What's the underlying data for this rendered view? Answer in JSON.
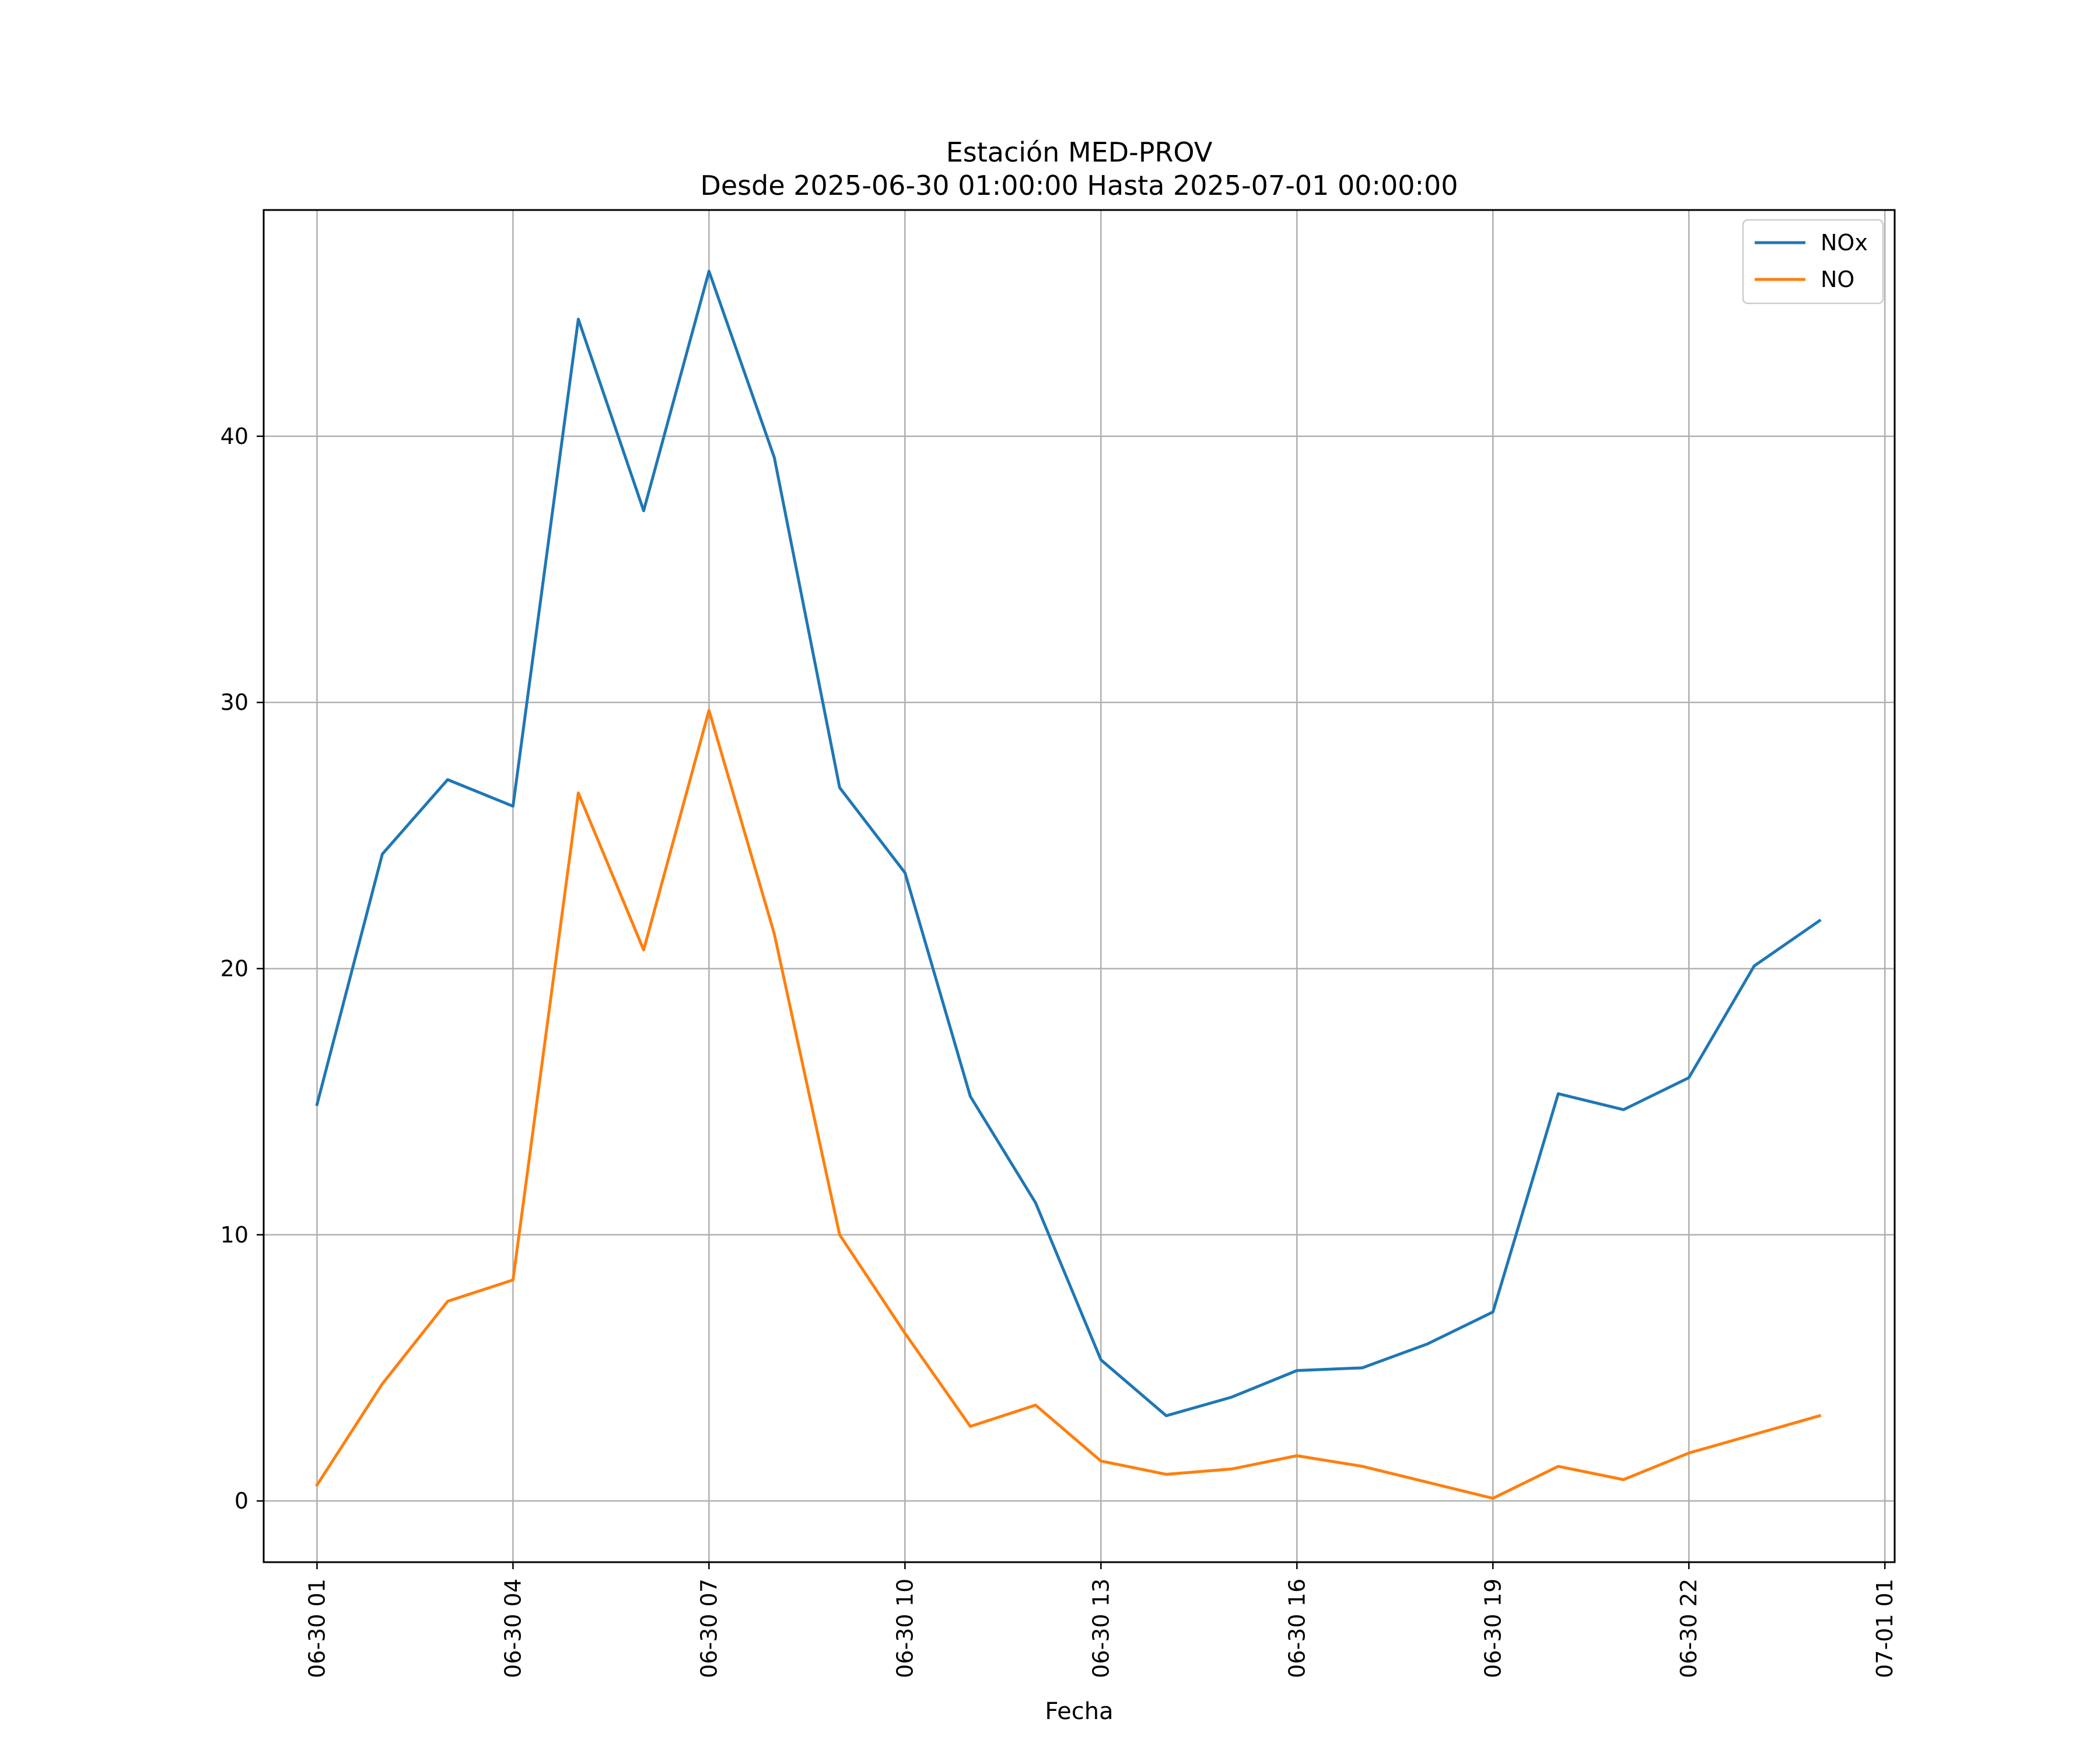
{
  "chart_data": {
    "type": "line",
    "title": "Estación MED-PROV",
    "subtitle": "Desde 2025-06-30 01:00:00 Hasta 2025-07-01 00:00:00",
    "xlabel": "Fecha",
    "ylabel": "",
    "x": [
      "2025-06-30 01:00",
      "2025-06-30 02:00",
      "2025-06-30 03:00",
      "2025-06-30 04:00",
      "2025-06-30 05:00",
      "2025-06-30 06:00",
      "2025-06-30 07:00",
      "2025-06-30 08:00",
      "2025-06-30 09:00",
      "2025-06-30 10:00",
      "2025-06-30 11:00",
      "2025-06-30 12:00",
      "2025-06-30 13:00",
      "2025-06-30 14:00",
      "2025-06-30 15:00",
      "2025-06-30 16:00",
      "2025-06-30 17:00",
      "2025-06-30 18:00",
      "2025-06-30 19:00",
      "2025-06-30 20:00",
      "2025-06-30 21:00",
      "2025-06-30 22:00",
      "2025-06-30 23:00",
      "2025-07-01 00:00"
    ],
    "series": [
      {
        "name": "NOx",
        "color": "#1f77b4",
        "values": [
          14.9,
          24.3,
          27.1,
          26.1,
          44.4,
          37.2,
          46.2,
          39.2,
          26.8,
          23.6,
          15.2,
          11.2,
          5.3,
          3.2,
          3.9,
          4.9,
          5.0,
          5.9,
          7.1,
          15.3,
          14.7,
          15.9,
          20.1,
          21.8
        ]
      },
      {
        "name": "NO",
        "color": "#ff7f0e",
        "values": [
          0.6,
          4.4,
          7.5,
          8.3,
          26.6,
          20.7,
          29.7,
          21.3,
          10.0,
          6.3,
          2.8,
          3.6,
          1.5,
          1.0,
          1.2,
          1.7,
          1.3,
          0.7,
          0.1,
          1.3,
          0.8,
          1.8,
          2.5,
          3.2
        ]
      }
    ],
    "x_ticks": [
      "06-30 01",
      "06-30 04",
      "06-30 07",
      "06-30 10",
      "06-30 13",
      "06-30 16",
      "06-30 19",
      "06-30 22",
      "07-01 01"
    ],
    "y_ticks": [
      "0",
      "10",
      "20",
      "30",
      "40"
    ],
    "ylim": [
      -2.3,
      48.5
    ],
    "grid": true,
    "legend_position": "top-right"
  }
}
